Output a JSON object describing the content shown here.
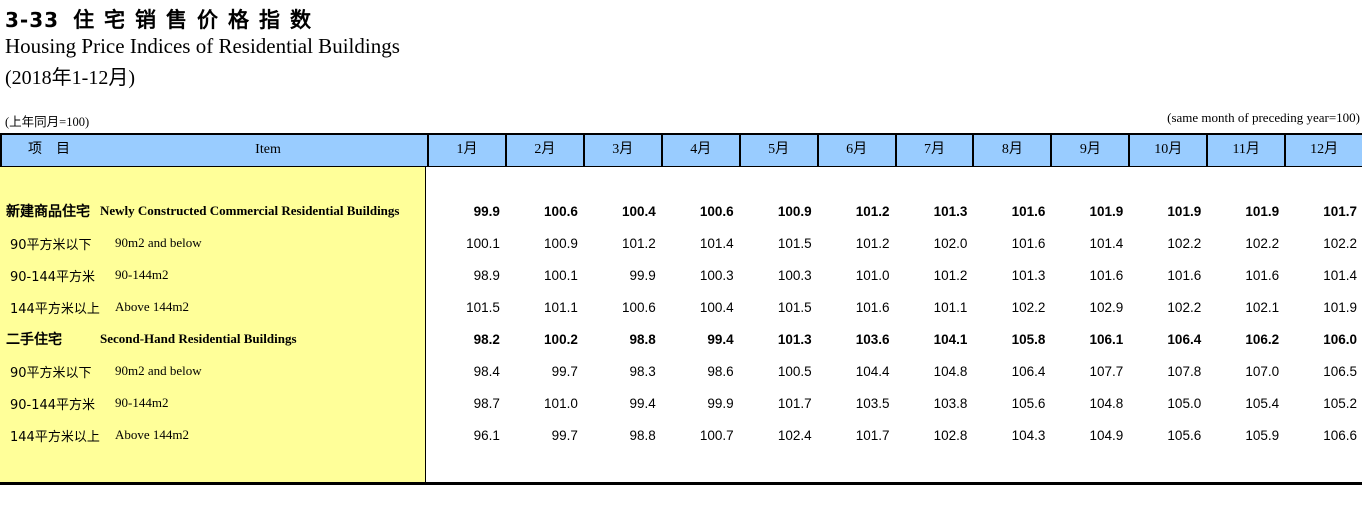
{
  "page": {
    "title_no": "3-33",
    "title_cn": "住宅销售价格指数",
    "title_en": "Housing Price Indices of Residential Buildings",
    "period": "(2018年1-12月)",
    "note_left": "(上年同月=100)",
    "note_right": "(same month of preceding year=100)"
  },
  "colors": {
    "header_bg": "#99CCFF",
    "item_column_bg": "#FFFF99",
    "border": "#000000"
  },
  "table": {
    "header": {
      "item_cn": "项　目",
      "item_en": "Item",
      "months": [
        "1月",
        "2月",
        "3月",
        "4月",
        "5月",
        "6月",
        "7月",
        "8月",
        "9月",
        "10月",
        "11月",
        "12月"
      ]
    },
    "rows": [
      {
        "cn": "新建商品住宅",
        "en": "Newly Constructed Commercial Residential Buildings",
        "bold": true,
        "values": [
          "99.9",
          "100.6",
          "100.4",
          "100.6",
          "100.9",
          "101.2",
          "101.3",
          "101.6",
          "101.9",
          "101.9",
          "101.9",
          "101.7"
        ]
      },
      {
        "cn": "90平方米以下",
        "en": "90m2 and below",
        "bold": false,
        "values": [
          "100.1",
          "100.9",
          "101.2",
          "101.4",
          "101.5",
          "101.2",
          "102.0",
          "101.6",
          "101.4",
          "102.2",
          "102.2",
          "102.2"
        ]
      },
      {
        "cn": "90-144平方米",
        "en": "90-144m2",
        "bold": false,
        "values": [
          "98.9",
          "100.1",
          "99.9",
          "100.3",
          "100.3",
          "101.0",
          "101.2",
          "101.3",
          "101.6",
          "101.6",
          "101.6",
          "101.4"
        ]
      },
      {
        "cn": "144平方米以上",
        "en": "Above 144m2",
        "bold": false,
        "values": [
          "101.5",
          "101.1",
          "100.6",
          "100.4",
          "101.5",
          "101.6",
          "101.1",
          "102.2",
          "102.9",
          "102.2",
          "102.1",
          "101.9"
        ]
      },
      {
        "cn": "二手住宅",
        "en": "Second-Hand Residential Buildings",
        "bold": true,
        "values": [
          "98.2",
          "100.2",
          "98.8",
          "99.4",
          "101.3",
          "103.6",
          "104.1",
          "105.8",
          "106.1",
          "106.4",
          "106.2",
          "106.0"
        ]
      },
      {
        "cn": "90平方米以下",
        "en": "90m2 and below",
        "bold": false,
        "values": [
          "98.4",
          "99.7",
          "98.3",
          "98.6",
          "100.5",
          "104.4",
          "104.8",
          "106.4",
          "107.7",
          "107.8",
          "107.0",
          "106.5"
        ]
      },
      {
        "cn": "90-144平方米",
        "en": "90-144m2",
        "bold": false,
        "values": [
          "98.7",
          "101.0",
          "99.4",
          "99.9",
          "101.7",
          "103.5",
          "103.8",
          "105.6",
          "104.8",
          "105.0",
          "105.4",
          "105.2"
        ]
      },
      {
        "cn": "144平方米以上",
        "en": "Above 144m2",
        "bold": false,
        "values": [
          "96.1",
          "99.7",
          "98.8",
          "100.7",
          "102.4",
          "101.7",
          "102.8",
          "104.3",
          "104.9",
          "105.6",
          "105.9",
          "106.6"
        ]
      }
    ]
  },
  "chart_data": {
    "type": "table",
    "title": "3-33 住宅销售价格指数 / Housing Price Indices of Residential Buildings (2018年1-12月)",
    "unit_note": "上年同月=100 (same month of preceding year=100)",
    "columns": [
      "Item",
      "1月",
      "2月",
      "3月",
      "4月",
      "5月",
      "6月",
      "7月",
      "8月",
      "9月",
      "10月",
      "11月",
      "12月"
    ],
    "rows": [
      [
        "新建商品住宅 Newly Constructed Commercial Residential Buildings",
        99.9,
        100.6,
        100.4,
        100.6,
        100.9,
        101.2,
        101.3,
        101.6,
        101.9,
        101.9,
        101.9,
        101.7
      ],
      [
        "90平方米以下 90m2 and below",
        100.1,
        100.9,
        101.2,
        101.4,
        101.5,
        101.2,
        102.0,
        101.6,
        101.4,
        102.2,
        102.2,
        102.2
      ],
      [
        "90-144平方米 90-144m2",
        98.9,
        100.1,
        99.9,
        100.3,
        100.3,
        101.0,
        101.2,
        101.3,
        101.6,
        101.6,
        101.6,
        101.4
      ],
      [
        "144平方米以上 Above 144m2",
        101.5,
        101.1,
        100.6,
        100.4,
        101.5,
        101.6,
        101.1,
        102.2,
        102.9,
        102.2,
        102.1,
        101.9
      ],
      [
        "二手住宅 Second-Hand Residential Buildings",
        98.2,
        100.2,
        98.8,
        99.4,
        101.3,
        103.6,
        104.1,
        105.8,
        106.1,
        106.4,
        106.2,
        106.0
      ],
      [
        "90平方米以下 90m2 and below",
        98.4,
        99.7,
        98.3,
        98.6,
        100.5,
        104.4,
        104.8,
        106.4,
        107.7,
        107.8,
        107.0,
        106.5
      ],
      [
        "90-144平方米 90-144m2",
        98.7,
        101.0,
        99.4,
        99.9,
        101.7,
        103.5,
        103.8,
        105.6,
        104.8,
        105.0,
        105.4,
        105.2
      ],
      [
        "144平方米以上 Above 144m2",
        96.1,
        99.7,
        98.8,
        100.7,
        102.4,
        101.7,
        102.8,
        104.3,
        104.9,
        105.6,
        105.9,
        106.6
      ]
    ]
  }
}
